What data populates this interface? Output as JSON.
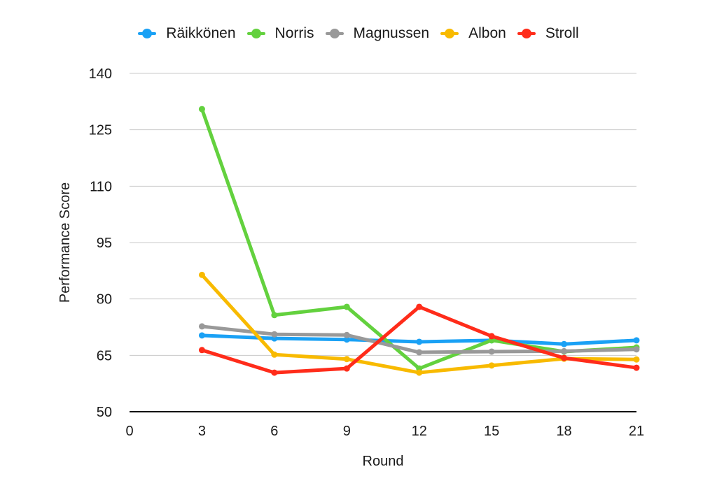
{
  "chart_data": {
    "type": "line",
    "title": "",
    "xlabel": "Round",
    "ylabel": "Performance Score",
    "xlim": [
      0,
      21
    ],
    "ylim": [
      50,
      140
    ],
    "x_ticks": [
      0,
      3,
      6,
      9,
      12,
      15,
      18,
      21
    ],
    "y_ticks": [
      50,
      65,
      80,
      95,
      110,
      125,
      140
    ],
    "grid": true,
    "legend_position": "top",
    "x": [
      3,
      6,
      9,
      12,
      15,
      18,
      21
    ],
    "series": [
      {
        "name": "Räikkönen",
        "color": "#1AA1F5",
        "values": [
          70.3,
          69.5,
          69.2,
          68.6,
          69.0,
          68.0,
          69.0
        ]
      },
      {
        "name": "Norris",
        "color": "#63D13E",
        "values": [
          130.5,
          75.7,
          77.9,
          61.5,
          69.0,
          66.0,
          67.1
        ]
      },
      {
        "name": "Magnussen",
        "color": "#999999",
        "values": [
          72.7,
          70.6,
          70.4,
          65.8,
          66.0,
          66.1,
          66.6
        ]
      },
      {
        "name": "Albon",
        "color": "#F8BA00",
        "values": [
          86.4,
          65.2,
          64.0,
          60.4,
          62.3,
          64.1,
          63.9
        ]
      },
      {
        "name": "Stroll",
        "color": "#FF2C1A",
        "values": [
          66.4,
          60.4,
          61.5,
          77.9,
          70.1,
          64.3,
          61.7
        ]
      }
    ]
  },
  "legend": {
    "items": [
      {
        "label": "Räikkönen",
        "color": "#1AA1F5"
      },
      {
        "label": "Norris",
        "color": "#63D13E"
      },
      {
        "label": "Magnussen",
        "color": "#999999"
      },
      {
        "label": "Albon",
        "color": "#F8BA00"
      },
      {
        "label": "Stroll",
        "color": "#FF2C1A"
      }
    ]
  },
  "axes": {
    "x_title": "Round",
    "y_title": "Performance Score"
  }
}
